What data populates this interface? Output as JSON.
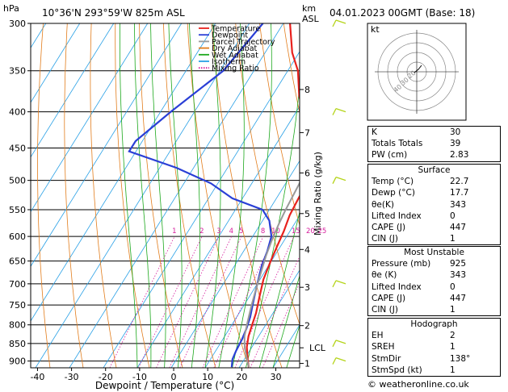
{
  "header": {
    "units_hpa": "hPa",
    "location": "10°36'N  293°59'W  825m  ASL",
    "km_label": "km",
    "asl_label": "ASL",
    "datetime": "04.01.2023  00GMT  (Base: 18)"
  },
  "chart_data": {
    "type": "line",
    "title": "",
    "xlabel": "Dewpoint / Temperature (°C)",
    "ylabel": "hPa",
    "x_ticks": [
      -40,
      -30,
      -20,
      -10,
      0,
      10,
      20,
      30
    ],
    "pressure_ticks": [
      300,
      350,
      400,
      450,
      500,
      550,
      600,
      650,
      700,
      750,
      800,
      850,
      900
    ],
    "xlim": [
      -42,
      37
    ],
    "ylim": [
      920,
      300
    ],
    "y_scale": "log",
    "km_ticks": [
      {
        "label": "1",
        "p": 907
      },
      {
        "label": "2",
        "p": 802
      },
      {
        "label": "3",
        "p": 708
      },
      {
        "label": "4",
        "p": 626
      },
      {
        "label": "5",
        "p": 557
      },
      {
        "label": "6",
        "p": 488
      },
      {
        "label": "7",
        "p": 428
      },
      {
        "label": "8",
        "p": 372
      }
    ],
    "lcl": {
      "label": "LCL",
      "p": 862
    },
    "mixing_ratio_label": "Mixing Ratio (g/kg)",
    "mixing_ratio_values": [
      "1",
      "2",
      "3",
      "4",
      "5",
      "8",
      "10",
      "15",
      "20",
      "25"
    ],
    "series": [
      {
        "name": "Temperature",
        "color": "#e8211d",
        "points": [
          [
            22.7,
            918
          ],
          [
            21,
            895
          ],
          [
            18.5,
            860
          ],
          [
            17,
            830
          ],
          [
            16,
            800
          ],
          [
            15,
            770
          ],
          [
            13,
            730
          ],
          [
            11,
            690
          ],
          [
            9.8,
            650
          ],
          [
            9,
            620
          ],
          [
            8.2,
            590
          ],
          [
            7,
            560
          ],
          [
            6.5,
            530
          ],
          [
            6.3,
            510
          ],
          [
            5,
            480
          ],
          [
            3,
            460
          ],
          [
            -1.5,
            440
          ],
          [
            -6,
            410
          ],
          [
            -12,
            380
          ],
          [
            -17,
            350
          ],
          [
            -22,
            330
          ],
          [
            -28,
            300
          ]
        ]
      },
      {
        "name": "Dewpoint",
        "color": "#2a3fd6",
        "points": [
          [
            17.7,
            918
          ],
          [
            16.5,
            895
          ],
          [
            16,
            870
          ],
          [
            15.7,
            840
          ],
          [
            15,
            810
          ],
          [
            14,
            780
          ],
          [
            12.5,
            750
          ],
          [
            11,
            720
          ],
          [
            9.5,
            690
          ],
          [
            8,
            660
          ],
          [
            7,
            630
          ],
          [
            5.5,
            600
          ],
          [
            2,
            570
          ],
          [
            -2,
            550
          ],
          [
            -13,
            530
          ],
          [
            -22,
            505
          ],
          [
            -35,
            480
          ],
          [
            -52,
            455
          ],
          [
            -52,
            440
          ],
          [
            -47,
            400
          ],
          [
            -39,
            350
          ],
          [
            -36,
            300
          ]
        ]
      },
      {
        "name": "Parcel Trajectory",
        "color": "#999999",
        "points": [
          [
            22.7,
            918
          ],
          [
            18,
            862
          ],
          [
            15.8,
            830
          ],
          [
            14,
            790
          ],
          [
            12.2,
            750
          ],
          [
            10.5,
            710
          ],
          [
            8.8,
            670
          ],
          [
            7.5,
            640
          ],
          [
            6.4,
            610
          ],
          [
            5.5,
            580
          ],
          [
            4.8,
            550
          ],
          [
            4.3,
            520
          ],
          [
            3.8,
            490
          ],
          [
            2.8,
            460
          ],
          [
            0.8,
            430
          ],
          [
            -2.6,
            400
          ],
          [
            -7.2,
            370
          ],
          [
            -12.5,
            340
          ],
          [
            -17.5,
            320
          ],
          [
            -22,
            300
          ]
        ]
      }
    ],
    "legend": {
      "position": "top-right",
      "entries": [
        {
          "label": "Temperature",
          "color": "#e8211d",
          "dash": "solid"
        },
        {
          "label": "Dewpoint",
          "color": "#2a3fd6",
          "dash": "solid"
        },
        {
          "label": "Parcel Trajectory",
          "color": "#999999",
          "dash": "solid"
        },
        {
          "label": "Dry Adiabat",
          "color": "#e27d1c",
          "dash": "solid"
        },
        {
          "label": "Wet Adiabat",
          "color": "#1ca81c",
          "dash": "solid"
        },
        {
          "label": "Isotherm",
          "color": "#28a0e6",
          "dash": "solid"
        },
        {
          "label": "Mixing Ratio",
          "color": "#d61c9c",
          "dash": "dotted"
        }
      ]
    },
    "wind_barbs_color": "#b5d41a",
    "wind_barb_pressures": [
      300,
      400,
      500,
      700,
      850,
      900
    ]
  },
  "hodograph": {
    "unit_label": "kt",
    "ring_labels": [
      "40",
      "30",
      "20"
    ]
  },
  "indices": [
    {
      "label": "K",
      "value": "30"
    },
    {
      "label": "Totals Totals",
      "value": "39"
    },
    {
      "label": "PW (cm)",
      "value": "2.83"
    }
  ],
  "surface": {
    "title": "Surface",
    "rows": [
      {
        "label": "Temp (°C)",
        "value": "22.7"
      },
      {
        "label": "Dewp (°C)",
        "value": "17.7"
      },
      {
        "label": "θe(K)",
        "value": "343"
      },
      {
        "label": "Lifted Index",
        "value": "0"
      },
      {
        "label": "CAPE (J)",
        "value": "447"
      },
      {
        "label": "CIN (J)",
        "value": "1"
      }
    ]
  },
  "most_unstable": {
    "title": "Most Unstable",
    "rows": [
      {
        "label": "Pressure (mb)",
        "value": "925"
      },
      {
        "label": "θe (K)",
        "value": "343"
      },
      {
        "label": "Lifted Index",
        "value": "0"
      },
      {
        "label": "CAPE (J)",
        "value": "447"
      },
      {
        "label": "CIN (J)",
        "value": "1"
      }
    ]
  },
  "hodograph_table": {
    "title": "Hodograph",
    "rows": [
      {
        "label": "EH",
        "value": "2"
      },
      {
        "label": "SREH",
        "value": "1"
      },
      {
        "label": "StmDir",
        "value": "138°"
      },
      {
        "label": "StmSpd (kt)",
        "value": "1"
      }
    ]
  },
  "credit": "© weatheronline.co.uk"
}
